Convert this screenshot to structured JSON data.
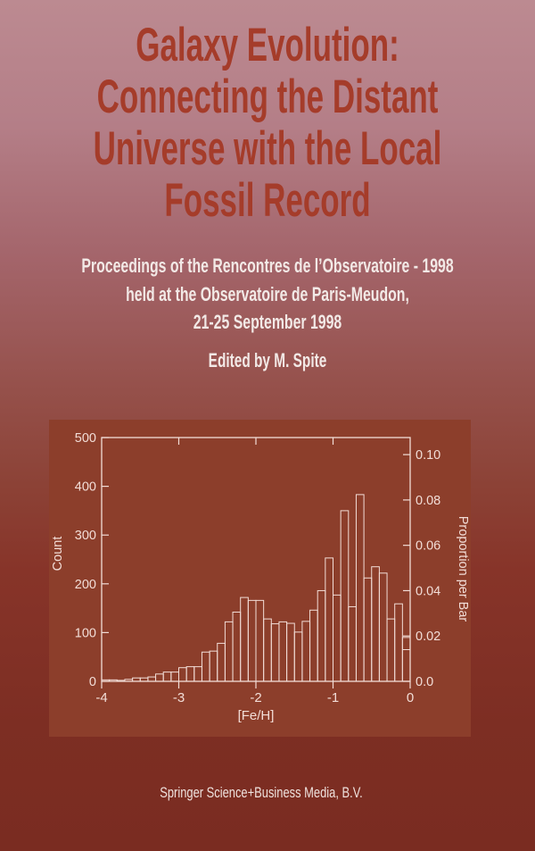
{
  "cover": {
    "title_lines": [
      "Galaxy Evolution:",
      "Connecting the Distant",
      "Universe with the Local",
      "Fossil Record"
    ],
    "subtitle_lines": [
      "Proceedings of the Rencontres de l’Observatoire - 1998",
      "held at the Observatoire de Paris-Meudon,",
      "21-25 September 1998"
    ],
    "edited_by": "Edited by M. Spite",
    "publisher": "Springer Science+Business Media, B.V."
  },
  "colors": {
    "background_top": "#bc8a91",
    "background_bottom": "#7a2c21",
    "title_text": "#a53c2a",
    "subtitle_text": "#f2e9e6",
    "panel_background": "#8c3e2b",
    "plot_foreground": "#f2ddd7"
  },
  "chart_data": {
    "type": "bar",
    "title": "",
    "xlabel": "[Fe/H]",
    "ylabel_left": "Count",
    "ylabel_right": "Proportion per Bar",
    "xlim": [
      -4,
      0
    ],
    "ylim_left": [
      0,
      500
    ],
    "bin_start": -4.0,
    "bin_width": 0.1,
    "values": [
      3,
      3,
      2,
      4,
      7,
      7,
      9,
      15,
      19,
      19,
      28,
      30,
      30,
      60,
      62,
      78,
      122,
      142,
      172,
      166,
      166,
      128,
      118,
      122,
      119,
      101,
      123,
      146,
      186,
      253,
      177,
      350,
      153,
      383,
      212,
      235,
      222,
      128,
      159,
      90
    ],
    "last_bin_inner_value": 65,
    "x_axis": {
      "ticks": [
        -4,
        -3,
        -2,
        -1,
        0
      ],
      "tick_labels": [
        "-4",
        "-3",
        "-2",
        "-1",
        "0"
      ],
      "top_ticks": [
        -3,
        -2,
        -1
      ]
    },
    "left_axis": {
      "ticks": [
        0,
        100,
        200,
        300,
        400,
        500
      ],
      "tick_labels": [
        "0",
        "100",
        "200",
        "300",
        "400",
        "500"
      ]
    },
    "right_axis": {
      "tick_labels": [
        "0.0",
        "0.02",
        "0.04",
        "0.06",
        "0.08",
        "0.10"
      ],
      "tick_counts": [
        0,
        93,
        186,
        279,
        372,
        465
      ]
    },
    "grid": false,
    "legend": "none",
    "bar_style": "outlined, unfilled histogram on brick-red panel"
  }
}
